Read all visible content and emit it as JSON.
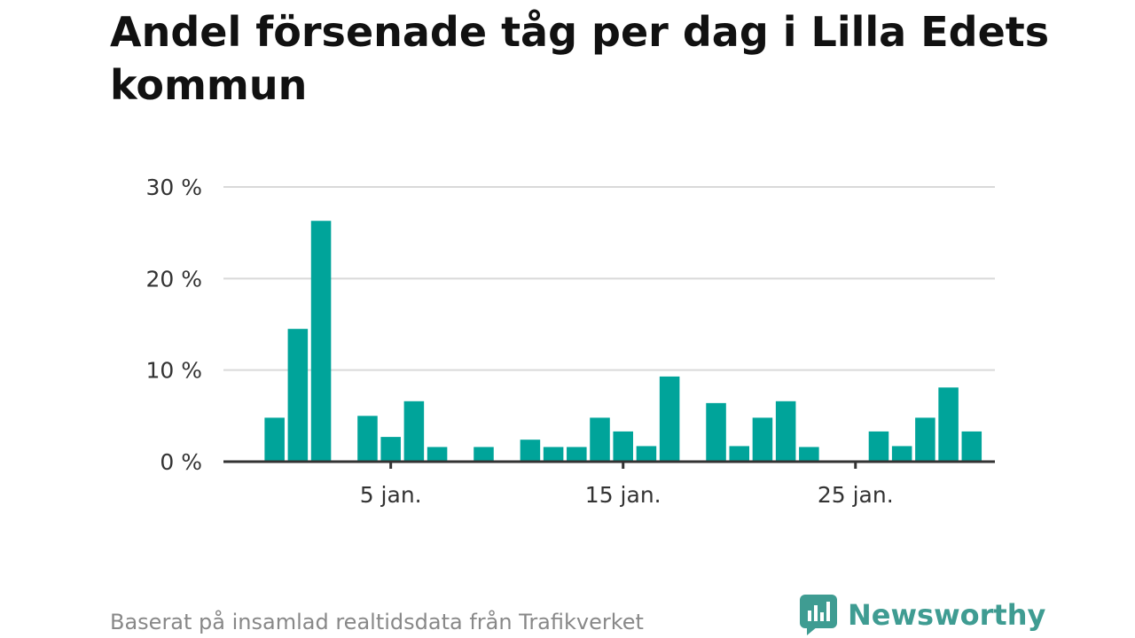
{
  "chart_data": {
    "type": "bar",
    "title": "Andel försenade tåg per dag i Lilla Edets kommun",
    "xlabel": "",
    "ylabel": "",
    "x_unit": "day of January",
    "x": [
      1,
      2,
      3,
      4,
      5,
      6,
      7,
      8,
      9,
      10,
      11,
      12,
      13,
      14,
      15,
      16,
      17,
      18,
      19,
      20,
      21,
      22,
      23,
      24,
      25,
      26,
      27,
      28,
      29,
      30,
      31,
      32
    ],
    "values": [
      0,
      4.8,
      14.5,
      26.3,
      0,
      5.0,
      2.7,
      6.6,
      1.6,
      0,
      1.6,
      0,
      2.4,
      1.6,
      1.6,
      4.8,
      3.3,
      1.7,
      9.3,
      0,
      6.4,
      1.7,
      4.8,
      6.6,
      1.6,
      0,
      0,
      3.3,
      1.7,
      4.8,
      8.1,
      3.3
    ],
    "ylim": [
      0,
      30
    ],
    "y_ticks": [
      0,
      10,
      20,
      30
    ],
    "y_tick_labels": [
      "0 %",
      "10 %",
      "20 %",
      "30 %"
    ],
    "x_ticks": [
      7,
      17,
      27
    ],
    "x_tick_labels": [
      "5 jan.",
      "15 jan.",
      "25 jan."
    ],
    "grid": true,
    "bar_color": "#00a49a"
  },
  "footer": {
    "source": "Baserat på insamlad realtidsdata från Trafikverket",
    "brand": "Newsworthy",
    "brand_color": "#3f9c92"
  }
}
